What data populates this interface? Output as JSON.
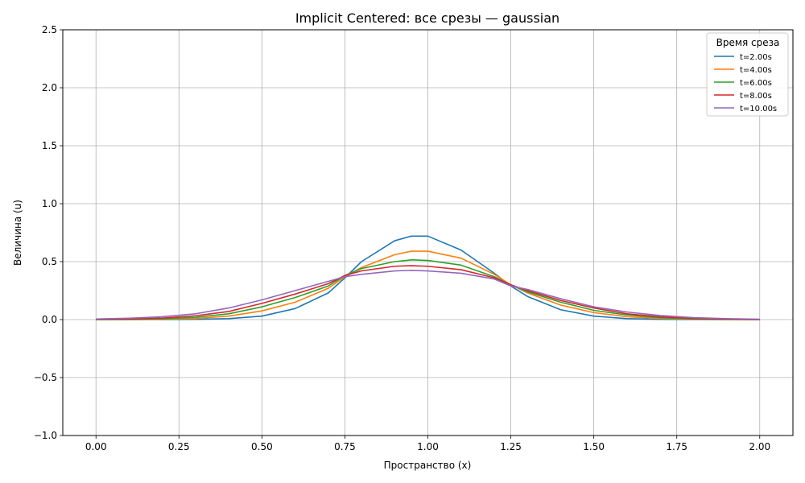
{
  "chart_data": {
    "type": "line",
    "title": "Implicit Centered: все срезы — gaussian",
    "xlabel": "Пространство (x)",
    "ylabel": "Величина (u)",
    "xlim": [
      -0.1,
      2.1
    ],
    "ylim": [
      -1.0,
      2.5
    ],
    "xticks": [
      "0.00",
      "0.25",
      "0.50",
      "0.75",
      "1.00",
      "1.25",
      "1.50",
      "1.75",
      "2.00"
    ],
    "yticks": [
      "−1.0",
      "−0.5",
      "0.0",
      "0.5",
      "1.0",
      "1.5",
      "2.0",
      "2.5"
    ],
    "grid": true,
    "legend": {
      "title": "Время среза",
      "placement": "top-right"
    },
    "x": [
      0.0,
      0.1,
      0.2,
      0.3,
      0.4,
      0.5,
      0.6,
      0.7,
      0.75,
      0.8,
      0.9,
      0.95,
      1.0,
      1.1,
      1.2,
      1.25,
      1.3,
      1.4,
      1.5,
      1.6,
      1.7,
      1.8,
      1.9,
      2.0
    ],
    "series": [
      {
        "name": "t=2.00s",
        "color": "#1f77b4",
        "values": [
          0.0,
          0.0,
          0.0,
          0.002,
          0.008,
          0.03,
          0.095,
          0.23,
          0.36,
          0.5,
          0.68,
          0.72,
          0.72,
          0.6,
          0.4,
          0.29,
          0.2,
          0.085,
          0.03,
          0.008,
          0.002,
          0.0,
          0.0,
          0.0
        ]
      },
      {
        "name": "t=4.00s",
        "color": "#ff7f0e",
        "values": [
          0.0,
          0.0,
          0.003,
          0.01,
          0.03,
          0.075,
          0.15,
          0.27,
          0.37,
          0.45,
          0.56,
          0.59,
          0.59,
          0.53,
          0.39,
          0.3,
          0.23,
          0.125,
          0.06,
          0.025,
          0.01,
          0.003,
          0.0,
          0.0
        ]
      },
      {
        "name": "t=6.00s",
        "color": "#2ca02c",
        "values": [
          0.0,
          0.002,
          0.007,
          0.02,
          0.05,
          0.11,
          0.19,
          0.29,
          0.38,
          0.44,
          0.5,
          0.515,
          0.51,
          0.47,
          0.37,
          0.3,
          0.24,
          0.15,
          0.08,
          0.04,
          0.017,
          0.006,
          0.002,
          0.0
        ]
      },
      {
        "name": "t=8.00s",
        "color": "#d62728",
        "values": [
          0.002,
          0.005,
          0.013,
          0.033,
          0.07,
          0.14,
          0.22,
          0.31,
          0.38,
          0.42,
          0.46,
          0.465,
          0.46,
          0.43,
          0.36,
          0.3,
          0.25,
          0.165,
          0.1,
          0.05,
          0.024,
          0.01,
          0.004,
          0.0
        ]
      },
      {
        "name": "t=10.00s",
        "color": "#9467bd",
        "values": [
          0.005,
          0.012,
          0.025,
          0.05,
          0.1,
          0.17,
          0.25,
          0.33,
          0.37,
          0.39,
          0.42,
          0.425,
          0.42,
          0.4,
          0.35,
          0.29,
          0.26,
          0.18,
          0.11,
          0.065,
          0.035,
          0.017,
          0.008,
          0.003
        ]
      }
    ]
  }
}
